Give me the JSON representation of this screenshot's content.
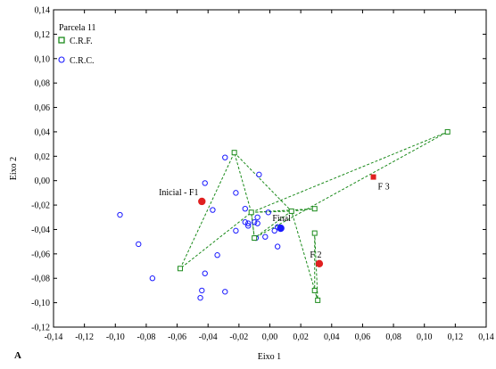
{
  "chart_data": {
    "type": "scatter",
    "xlabel": "Eixo 1",
    "ylabel": "Eixo 2",
    "panel_label": "A",
    "xlim": [
      -0.14,
      0.14
    ],
    "ylim": [
      -0.12,
      0.14
    ],
    "xticks": [
      -0.14,
      -0.12,
      -0.1,
      -0.08,
      -0.06,
      -0.04,
      -0.02,
      0.0,
      0.02,
      0.04,
      0.06,
      0.08,
      0.1,
      0.12,
      0.14
    ],
    "xtick_labels": [
      "-0,14",
      "-0,12",
      "-0,10",
      "-0,08",
      "-0,06",
      "-0,04",
      "-0,02",
      "0,00",
      "0,02",
      "0,04",
      "0,06",
      "0,08",
      "0,10",
      "0,12",
      "0,14"
    ],
    "yticks": [
      -0.12,
      -0.1,
      -0.08,
      -0.06,
      -0.04,
      -0.02,
      0.0,
      0.02,
      0.04,
      0.06,
      0.08,
      0.1,
      0.12,
      0.14
    ],
    "ytick_labels": [
      "-0,12",
      "-0,10",
      "-0,08",
      "-0,06",
      "-0,04",
      "-0,02",
      "0,00",
      "0,02",
      "0,04",
      "0,06",
      "0,08",
      "0,10",
      "0,12",
      "0,14"
    ],
    "legend": {
      "title": "Parcela 11",
      "position": "top-left",
      "entries": [
        "C.R.F.",
        "C.R.C."
      ]
    },
    "series": [
      {
        "name": "C.R.F.",
        "marker": "square",
        "color": "#1a8a1a",
        "points": [
          [
            -0.058,
            -0.072
          ],
          [
            -0.023,
            0.023
          ],
          [
            -0.012,
            -0.026
          ],
          [
            -0.01,
            -0.047
          ],
          [
            0.014,
            -0.025
          ],
          [
            0.029,
            -0.023
          ],
          [
            0.029,
            -0.043
          ],
          [
            0.029,
            -0.09
          ],
          [
            0.031,
            -0.098
          ],
          [
            0.115,
            0.04
          ]
        ],
        "polygons": [
          [
            [
              -0.058,
              -0.072
            ],
            [
              -0.023,
              0.023
            ],
            [
              -0.012,
              -0.026
            ],
            [
              -0.058,
              -0.072
            ]
          ],
          [
            [
              -0.012,
              -0.026
            ],
            [
              0.014,
              -0.025
            ],
            [
              -0.01,
              -0.047
            ],
            [
              -0.012,
              -0.026
            ]
          ],
          [
            [
              0.029,
              -0.043
            ],
            [
              0.031,
              -0.098
            ],
            [
              0.029,
              -0.09
            ],
            [
              0.029,
              -0.043
            ]
          ],
          [
            [
              0.014,
              -0.025
            ],
            [
              0.029,
              -0.023
            ],
            [
              -0.012,
              -0.026
            ]
          ],
          [
            [
              -0.023,
              0.023
            ],
            [
              0.014,
              -0.025
            ],
            [
              0.031,
              -0.098
            ]
          ],
          [
            [
              -0.012,
              -0.026
            ],
            [
              0.115,
              0.04
            ],
            [
              -0.01,
              -0.047
            ],
            [
              -0.012,
              -0.026
            ]
          ]
        ]
      },
      {
        "name": "C.R.C.",
        "marker": "circle",
        "color": "#1a1aff",
        "points": [
          [
            -0.097,
            -0.028
          ],
          [
            -0.085,
            -0.052
          ],
          [
            -0.076,
            -0.08
          ],
          [
            -0.045,
            -0.096
          ],
          [
            -0.044,
            -0.09
          ],
          [
            -0.042,
            -0.076
          ],
          [
            -0.042,
            -0.002
          ],
          [
            -0.037,
            -0.024
          ],
          [
            -0.034,
            -0.061
          ],
          [
            -0.029,
            0.019
          ],
          [
            -0.029,
            -0.091
          ],
          [
            -0.022,
            -0.01
          ],
          [
            -0.022,
            -0.041
          ],
          [
            -0.016,
            -0.023
          ],
          [
            -0.016,
            -0.034
          ],
          [
            -0.014,
            -0.035
          ],
          [
            -0.014,
            -0.037
          ],
          [
            -0.01,
            -0.034
          ],
          [
            -0.009,
            -0.047
          ],
          [
            -0.008,
            -0.035
          ],
          [
            -0.008,
            -0.03
          ],
          [
            -0.007,
            0.005
          ],
          [
            -0.003,
            -0.046
          ],
          [
            -0.001,
            -0.026
          ],
          [
            0.003,
            -0.041
          ],
          [
            0.005,
            -0.054
          ],
          [
            0.005,
            -0.038
          ]
        ]
      }
    ],
    "annotations": [
      {
        "label": "Inicial - F1",
        "x": -0.044,
        "y": -0.017,
        "marker": "red-dot",
        "color": "#e02020"
      },
      {
        "label": "Final",
        "x": 0.007,
        "y": -0.039,
        "marker": "blue-dot",
        "color": "#1a1aff"
      },
      {
        "label": "F 2",
        "x": 0.032,
        "y": -0.068,
        "marker": "red-dot",
        "color": "#e02020"
      },
      {
        "label": "F 3",
        "x": 0.067,
        "y": 0.003,
        "marker": "red-square",
        "color": "#e02020"
      }
    ]
  }
}
